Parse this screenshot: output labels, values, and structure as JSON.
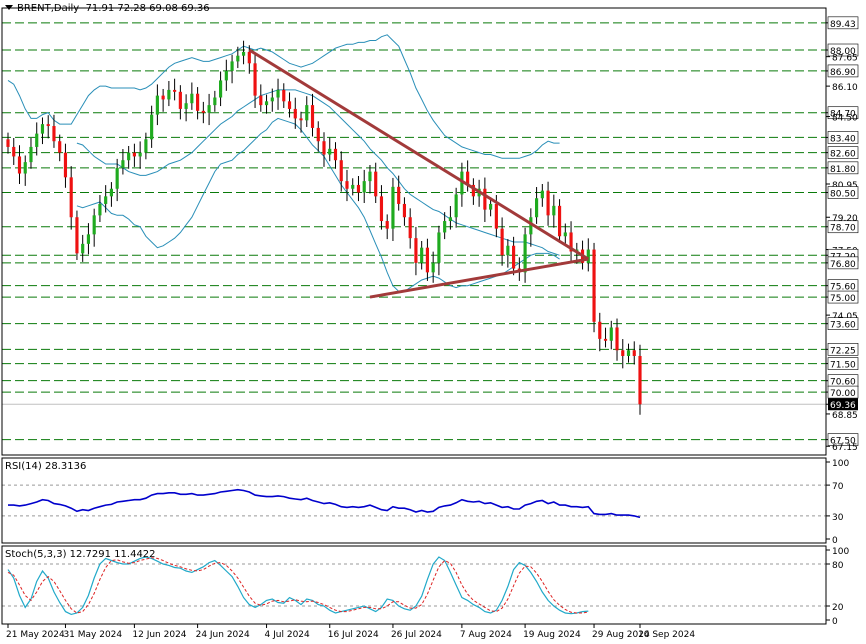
{
  "header": {
    "symbol": "BRENT,Daily",
    "ohlc": "71.91 72.28 69.08 69.36"
  },
  "rsi_panel": {
    "label": "RSI(14) 28.3136"
  },
  "stoch_panel": {
    "label": "Stoch(5,3,3) 12.7291 11.4422"
  },
  "colors": {
    "bull": "#1faa1f",
    "bear": "#ee1111",
    "band": "#2a8fb8",
    "trendline": "#a23a3a",
    "grid_dash": "#0a7a0a",
    "rsi_line": "#0000cc",
    "stoch_main": "#21a9c9",
    "stoch_signal": "#dd2222",
    "current_price_bg": "#000000"
  },
  "chart_data": [
    {
      "type": "candlestick",
      "symbol": "BRENT",
      "timeframe": "Daily",
      "price_axis_ticks": [
        "89.43",
        "88.00",
        "87.65",
        "86.90",
        "86.10",
        "84.70",
        "84.50",
        "83.40",
        "82.60",
        "81.80",
        "80.95",
        "80.50",
        "79.20",
        "78.70",
        "77.50",
        "77.20",
        "76.80",
        "75.60",
        "75.00",
        "74.05",
        "73.60",
        "72.25",
        "71.50",
        "70.60",
        "70.00",
        "69.36",
        "68.85",
        "67.50",
        "67.15"
      ],
      "highlighted_levels": [
        89.43,
        88.0,
        86.9,
        84.7,
        83.4,
        82.6,
        81.8,
        80.5,
        78.7,
        77.2,
        76.8,
        75.6,
        75.0,
        73.6,
        72.25,
        71.5,
        70.6,
        70.0,
        67.5
      ],
      "current_price": 69.36,
      "ylim": [
        66.9,
        90.0
      ],
      "x_tick_labels": [
        "21 May 2024",
        "31 May 2024",
        "12 Jun 2024",
        "24 Jun 2024",
        "4 Jul 2024",
        "16 Jul 2024",
        "26 Jul 2024",
        "7 Aug 2024",
        "19 Aug 2024",
        "29 Aug 2024",
        "10 Sep 2024"
      ],
      "closes": [
        82.9,
        82.4,
        81.5,
        82.1,
        82.9,
        83.6,
        84.1,
        84.0,
        83.2,
        82.6,
        81.3,
        79.2,
        77.3,
        77.8,
        78.3,
        79.3,
        79.9,
        80.3,
        80.7,
        81.8,
        82.2,
        82.6,
        82.4,
        82.6,
        83.3,
        84.6,
        85.6,
        85.4,
        85.9,
        85.8,
        84.9,
        85.2,
        85.7,
        84.8,
        84.7,
        85.1,
        85.5,
        86.4,
        86.9,
        87.4,
        87.7,
        87.9,
        87.3,
        85.6,
        85.1,
        85.3,
        85.5,
        85.9,
        85.3,
        84.9,
        84.4,
        84.3,
        85.1,
        83.9,
        83.2,
        82.5,
        82.8,
        82.2,
        81.1,
        80.7,
        80.9,
        80.5,
        81.1,
        81.6,
        80.3,
        79.0,
        78.6,
        80.8,
        79.9,
        79.2,
        78.1,
        76.8,
        77.6,
        76.3,
        76.8,
        78.4,
        79.0,
        79.2,
        80.4,
        81.6,
        80.9,
        80.3,
        80.7,
        79.6,
        79.9,
        78.6,
        77.2,
        77.7,
        76.5,
        76.3,
        78.3,
        79.2,
        80.2,
        80.6,
        79.3,
        79.8,
        78.2,
        78.4,
        77.4,
        77.5,
        76.8,
        77.5,
        73.7,
        72.8,
        72.7,
        73.4,
        72.2,
        71.9,
        72.2,
        71.9,
        69.36
      ],
      "upper_band": [
        86.4,
        86.2,
        85.6,
        84.9,
        84.4,
        84.4,
        84.6,
        84.7,
        84.3,
        84.1,
        84.1,
        84.1,
        84.6,
        85.1,
        85.6,
        85.9,
        86.1,
        86.1,
        86.0,
        86.0,
        86.0,
        86.0,
        86.0,
        85.9,
        86.0,
        86.2,
        86.5,
        86.8,
        87.1,
        87.3,
        87.4,
        87.5,
        87.6,
        87.5,
        87.4,
        87.4,
        87.5,
        87.6,
        87.7,
        87.8,
        88.0,
        88.2,
        88.1,
        88.0,
        88.1,
        88.0,
        87.9,
        87.7,
        87.5,
        87.3,
        87.2,
        87.1,
        87.2,
        87.3,
        87.5,
        87.7,
        87.9,
        88.1,
        88.2,
        88.3,
        88.3,
        88.4,
        88.4,
        88.5,
        88.5,
        88.7,
        88.8,
        88.5,
        88.2,
        87.5,
        86.8,
        86.0,
        85.4,
        84.8,
        84.3,
        83.9,
        83.5,
        83.3,
        83.1,
        82.9,
        82.8,
        82.7,
        82.6,
        82.5,
        82.5,
        82.4,
        82.3,
        82.3,
        82.3,
        82.3,
        82.4,
        82.5,
        82.7,
        83.0,
        83.2,
        83.1,
        83.1
      ],
      "middle_band": [
        83.1,
        83.0,
        82.7,
        82.4,
        82.2,
        82.0,
        82.0,
        82.0,
        81.8,
        81.6,
        81.5,
        81.4,
        81.4,
        81.5,
        81.6,
        81.8,
        82.0,
        82.1,
        82.2,
        82.4,
        82.6,
        82.9,
        83.2,
        83.5,
        83.8,
        84.1,
        84.3,
        84.5,
        84.8,
        85.0,
        85.2,
        85.4,
        85.6,
        85.7,
        85.8,
        85.9,
        85.9,
        85.9,
        85.9,
        85.8,
        85.7,
        85.6,
        85.4,
        85.2,
        85.0,
        84.7,
        84.4,
        84.1,
        83.8,
        83.5,
        83.2,
        82.8,
        82.5,
        82.2,
        81.8,
        81.5,
        81.1,
        80.7,
        80.4,
        80.2,
        80.0,
        79.8,
        79.6,
        79.5,
        79.3,
        79.1,
        78.9,
        78.8,
        78.7,
        78.6,
        78.5,
        78.4,
        78.3,
        78.2,
        78.1,
        78.0,
        77.9,
        77.9,
        77.9,
        77.8,
        77.7,
        77.6,
        77.4,
        77.3,
        77.2
      ],
      "lower_band": [
        79.8,
        79.7,
        79.8,
        79.9,
        80.0,
        79.7,
        79.4,
        79.3,
        79.3,
        79.1,
        78.8,
        78.7,
        78.2,
        77.9,
        77.6,
        77.7,
        77.9,
        78.1,
        78.4,
        78.8,
        79.2,
        79.8,
        80.4,
        81.0,
        81.6,
        82.0,
        82.1,
        82.2,
        82.5,
        82.7,
        83.0,
        83.3,
        83.6,
        83.8,
        84.2,
        84.4,
        84.3,
        84.2,
        84.1,
        83.8,
        83.4,
        83.0,
        82.7,
        82.4,
        81.9,
        81.4,
        80.9,
        80.5,
        80.1,
        79.7,
        79.2,
        78.5,
        77.8,
        77.1,
        76.3,
        75.6,
        75.3,
        75.3,
        75.5,
        75.7,
        75.9,
        76.0,
        76.1,
        76.0,
        75.8,
        75.6,
        75.5,
        75.6,
        75.6,
        75.7,
        75.8,
        75.9,
        76.0,
        76.1,
        76.2,
        76.4,
        76.6,
        76.8,
        77.0,
        77.2,
        77.3,
        77.3,
        77.3,
        77.2,
        77.0
      ],
      "triangle": {
        "upper_line": [
          [
            42,
            88.0
          ],
          [
            101,
            77.0
          ]
        ],
        "lower_line": [
          [
            63,
            75.0
          ],
          [
            101,
            77.0
          ]
        ]
      }
    },
    {
      "type": "line",
      "name": "RSI(14)",
      "ylim": [
        0,
        100
      ],
      "tick_labels": [
        "100",
        "70",
        "30",
        "0"
      ],
      "levels": [
        70,
        30
      ],
      "values": [
        44,
        44,
        43,
        44,
        46,
        48,
        51,
        50,
        46,
        45,
        43,
        40,
        36,
        38,
        37,
        40,
        42,
        44,
        45,
        48,
        49,
        50,
        51,
        51,
        53,
        57,
        59,
        59,
        60,
        60,
        58,
        58,
        59,
        57,
        57,
        58,
        59,
        61,
        62,
        63,
        64,
        63,
        61,
        57,
        56,
        55,
        55,
        56,
        55,
        53,
        52,
        51,
        53,
        50,
        48,
        46,
        47,
        45,
        42,
        41,
        42,
        41,
        42,
        44,
        41,
        38,
        37,
        42,
        40,
        40,
        38,
        35,
        37,
        35,
        36,
        41,
        43,
        44,
        47,
        51,
        49,
        48,
        49,
        46,
        47,
        44,
        41,
        42,
        39,
        39,
        44,
        46,
        49,
        50,
        46,
        48,
        44,
        44,
        42,
        42,
        41,
        42,
        33,
        32,
        32,
        33,
        31,
        31,
        31,
        30,
        28
      ]
    },
    {
      "type": "line",
      "name": "Stoch(5,3,3)",
      "ylim": [
        0,
        100
      ],
      "tick_labels": [
        "100",
        "80",
        "20",
        "0"
      ],
      "levels": [
        80,
        20
      ],
      "main": [
        72,
        60,
        35,
        18,
        30,
        55,
        70,
        60,
        40,
        25,
        12,
        8,
        10,
        18,
        35,
        60,
        80,
        88,
        85,
        82,
        80,
        80,
        84,
        88,
        90,
        88,
        84,
        80,
        78,
        75,
        74,
        70,
        68,
        72,
        76,
        82,
        85,
        78,
        70,
        62,
        48,
        32,
        22,
        18,
        22,
        28,
        30,
        25,
        24,
        32,
        28,
        22,
        30,
        28,
        22,
        20,
        14,
        10,
        12,
        14,
        16,
        18,
        20,
        16,
        12,
        18,
        30,
        28,
        20,
        16,
        14,
        20,
        34,
        58,
        80,
        90,
        85,
        68,
        50,
        32,
        28,
        22,
        18,
        12,
        10,
        14,
        28,
        48,
        72,
        82,
        78,
        68,
        55,
        40,
        28,
        20,
        14,
        10,
        9,
        10,
        12,
        12.7
      ],
      "signal": [
        68,
        64,
        50,
        35,
        28,
        40,
        55,
        62,
        55,
        42,
        28,
        16,
        10,
        12,
        22,
        38,
        58,
        75,
        85,
        86,
        83,
        81,
        82,
        85,
        87,
        89,
        88,
        85,
        81,
        78,
        76,
        73,
        71,
        70,
        72,
        77,
        81,
        82,
        78,
        70,
        60,
        47,
        34,
        24,
        21,
        23,
        27,
        28,
        26,
        27,
        29,
        27,
        26,
        27,
        25,
        22,
        18,
        14,
        12,
        12,
        14,
        16,
        18,
        18,
        16,
        16,
        20,
        26,
        26,
        21,
        17,
        17,
        22,
        37,
        57,
        76,
        85,
        81,
        68,
        50,
        37,
        28,
        23,
        18,
        13,
        12,
        17,
        30,
        49,
        67,
        77,
        76,
        67,
        55,
        41,
        29,
        21,
        15,
        11,
        10,
        10,
        11.4
      ]
    }
  ]
}
